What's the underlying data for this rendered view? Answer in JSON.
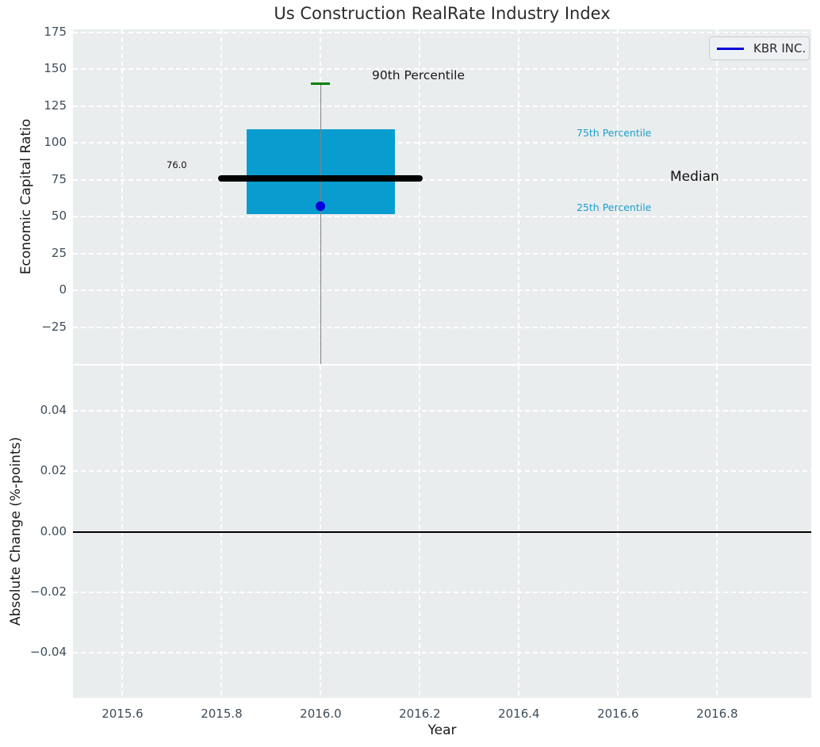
{
  "figure": {
    "title": "Us Construction RealRate Industry Index",
    "background": "#ffffff",
    "plot_background": "#e9eded"
  },
  "legend": {
    "label": "KBR INC.",
    "line_color": "#0000dd",
    "position": "upper right"
  },
  "labels": {
    "p90": "90th Percentile",
    "p75": "75th Percentile",
    "median": "Median",
    "p25": "25th Percentile",
    "median_value": "76.0"
  },
  "chart_data": [
    {
      "type": "box",
      "title": "Us Construction RealRate Industry Index",
      "ylabel": "Economic Capital Ratio",
      "xlabel": "",
      "xlim": [
        2015.5,
        2016.99
      ],
      "ylim": [
        -50,
        177
      ],
      "grid": true,
      "legend_entry": "KBR INC.",
      "xtick_values": [
        2015.6,
        2015.8,
        2016.0,
        2016.2,
        2016.4,
        2016.6,
        2016.8
      ],
      "xtick_labels": [
        "2015.6",
        "2015.8",
        "2016.0",
        "2016.2",
        "2016.4",
        "2016.6",
        "2016.8"
      ],
      "ytick_values": [
        175,
        150,
        125,
        100,
        75,
        50,
        25,
        0,
        -25
      ],
      "ytick_labels": [
        "175",
        "150",
        "125",
        "100",
        "75",
        "50",
        "25",
        "0",
        "−25"
      ],
      "show_xtick_labels": false,
      "box": {
        "year": 2016.0,
        "box_x_left": 2015.85,
        "box_x_right": 2016.15,
        "median_x_left": 2015.8,
        "median_x_right": 2016.2,
        "p25": 51.5,
        "p75": 109,
        "median": 76.0,
        "p90": 140,
        "whisker_low_clipped_at": -50,
        "company_value": 57
      },
      "colors": {
        "box_fill": "#089dce",
        "median_line": "#000000",
        "whisker": "#808080",
        "p90_cap": "#008000",
        "company_dot": "#0000dd",
        "percentile_label": "#1c9fce",
        "tick_label": "#3e4d59",
        "grid": "#ffffff"
      }
    },
    {
      "type": "line",
      "ylabel": "Absolute Change (%-points)",
      "xlabel": "Year",
      "xlim": [
        2015.5,
        2016.99
      ],
      "ylim": [
        -0.055,
        0.055
      ],
      "grid": true,
      "xtick_values": [
        2015.6,
        2015.8,
        2016.0,
        2016.2,
        2016.4,
        2016.6,
        2016.8
      ],
      "xtick_labels": [
        "2015.6",
        "2015.8",
        "2016.0",
        "2016.2",
        "2016.4",
        "2016.6",
        "2016.8"
      ],
      "ytick_values": [
        0.04,
        0.02,
        0.0,
        -0.02,
        -0.04
      ],
      "ytick_labels": [
        "0.04",
        "0.02",
        "0.00",
        "−0.02",
        "−0.04"
      ],
      "show_xtick_labels": true,
      "zero_line_y": 0.0,
      "zero_line_color": "#000000",
      "series": []
    }
  ]
}
